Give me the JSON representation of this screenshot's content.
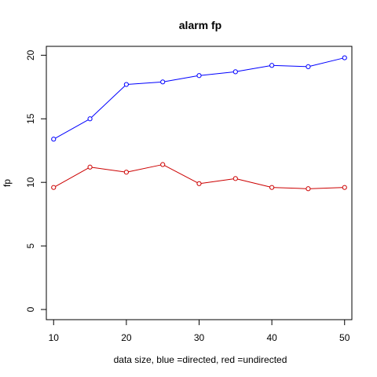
{
  "chart_data": {
    "type": "line",
    "title": "alarm fp",
    "xlabel": "data size,  blue =directed,  red =undirected",
    "ylabel": "fp",
    "x": [
      10,
      15,
      20,
      25,
      30,
      35,
      40,
      45,
      50
    ],
    "xticks": [
      10,
      20,
      30,
      40,
      50
    ],
    "yticks": [
      0,
      5,
      10,
      15,
      20
    ],
    "xlim": [
      9,
      51
    ],
    "ylim": [
      -0.8,
      20.7
    ],
    "grid": false,
    "series": [
      {
        "color": "#0000ff",
        "values": [
          13.4,
          15.0,
          17.7,
          17.9,
          18.4,
          18.7,
          19.2,
          19.1,
          19.8
        ]
      },
      {
        "color": "#cc0000",
        "values": [
          9.6,
          11.2,
          10.8,
          11.4,
          9.9,
          10.3,
          9.6,
          9.5,
          9.6
        ]
      }
    ]
  }
}
